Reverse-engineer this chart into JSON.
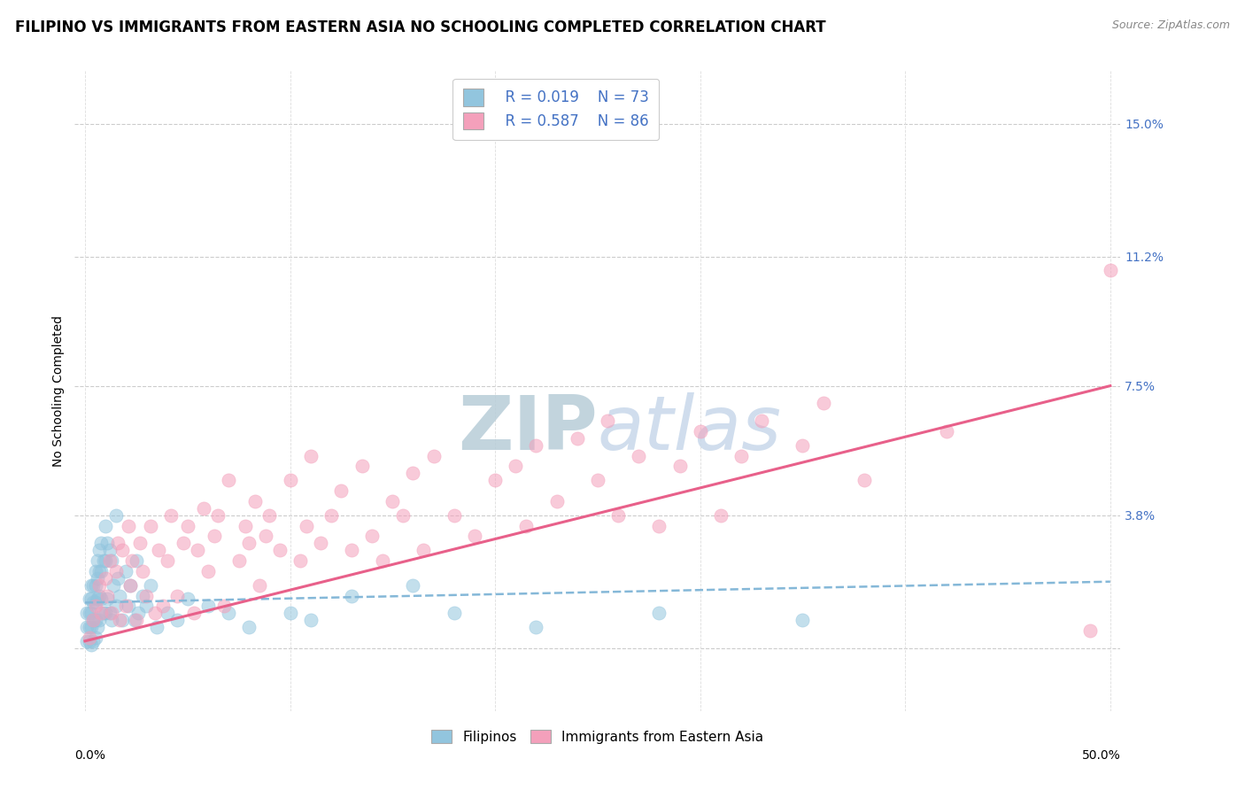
{
  "title": "FILIPINO VS IMMIGRANTS FROM EASTERN ASIA NO SCHOOLING COMPLETED CORRELATION CHART",
  "source": "Source: ZipAtlas.com",
  "ylabel": "No Schooling Completed",
  "ytick_labels": [
    "",
    "3.8%",
    "7.5%",
    "11.2%",
    "15.0%"
  ],
  "ytick_values": [
    0.0,
    0.038,
    0.075,
    0.112,
    0.15
  ],
  "xlim": [
    -0.005,
    0.505
  ],
  "ylim": [
    -0.018,
    0.165
  ],
  "legend_r1": "R = 0.019",
  "legend_n1": "N = 73",
  "legend_r2": "R = 0.587",
  "legend_n2": "N = 86",
  "blue_color": "#92C5DE",
  "pink_color": "#F4A0BB",
  "pink_line_color": "#E8608A",
  "blue_line_color": "#85B8D8",
  "title_fontsize": 12,
  "label_fontsize": 10,
  "tick_fontsize": 10,
  "watermark_color": "#C8D8EA",
  "background_color": "#ffffff",
  "blue_trend_x": [
    0.0,
    0.5
  ],
  "blue_trend_y": [
    0.013,
    0.019
  ],
  "pink_trend_x": [
    0.0,
    0.5
  ],
  "pink_trend_y": [
    0.002,
    0.075
  ],
  "blue_x": [
    0.001,
    0.001,
    0.001,
    0.002,
    0.002,
    0.002,
    0.002,
    0.003,
    0.003,
    0.003,
    0.003,
    0.003,
    0.004,
    0.004,
    0.004,
    0.004,
    0.005,
    0.005,
    0.005,
    0.005,
    0.005,
    0.006,
    0.006,
    0.006,
    0.006,
    0.007,
    0.007,
    0.007,
    0.007,
    0.008,
    0.008,
    0.008,
    0.009,
    0.009,
    0.01,
    0.01,
    0.01,
    0.011,
    0.011,
    0.012,
    0.012,
    0.013,
    0.013,
    0.014,
    0.015,
    0.015,
    0.016,
    0.017,
    0.018,
    0.02,
    0.021,
    0.022,
    0.024,
    0.025,
    0.026,
    0.028,
    0.03,
    0.032,
    0.035,
    0.04,
    0.045,
    0.05,
    0.06,
    0.07,
    0.08,
    0.1,
    0.11,
    0.13,
    0.16,
    0.18,
    0.22,
    0.28,
    0.35
  ],
  "blue_y": [
    0.01,
    0.006,
    0.002,
    0.014,
    0.01,
    0.006,
    0.002,
    0.018,
    0.014,
    0.01,
    0.006,
    0.001,
    0.018,
    0.013,
    0.008,
    0.002,
    0.022,
    0.018,
    0.013,
    0.008,
    0.003,
    0.025,
    0.02,
    0.014,
    0.006,
    0.028,
    0.022,
    0.015,
    0.008,
    0.03,
    0.022,
    0.014,
    0.025,
    0.01,
    0.035,
    0.025,
    0.01,
    0.03,
    0.014,
    0.028,
    0.01,
    0.025,
    0.008,
    0.018,
    0.038,
    0.012,
    0.02,
    0.015,
    0.008,
    0.022,
    0.012,
    0.018,
    0.008,
    0.025,
    0.01,
    0.015,
    0.012,
    0.018,
    0.006,
    0.01,
    0.008,
    0.014,
    0.012,
    0.01,
    0.006,
    0.01,
    0.008,
    0.015,
    0.018,
    0.01,
    0.006,
    0.01,
    0.008
  ],
  "pink_x": [
    0.002,
    0.004,
    0.005,
    0.007,
    0.008,
    0.01,
    0.011,
    0.012,
    0.013,
    0.015,
    0.016,
    0.017,
    0.018,
    0.02,
    0.021,
    0.022,
    0.023,
    0.025,
    0.027,
    0.028,
    0.03,
    0.032,
    0.034,
    0.036,
    0.038,
    0.04,
    0.042,
    0.045,
    0.048,
    0.05,
    0.053,
    0.055,
    0.058,
    0.06,
    0.063,
    0.065,
    0.068,
    0.07,
    0.075,
    0.078,
    0.08,
    0.083,
    0.085,
    0.088,
    0.09,
    0.095,
    0.1,
    0.105,
    0.108,
    0.11,
    0.115,
    0.12,
    0.125,
    0.13,
    0.135,
    0.14,
    0.145,
    0.15,
    0.155,
    0.16,
    0.165,
    0.17,
    0.18,
    0.19,
    0.2,
    0.21,
    0.215,
    0.22,
    0.23,
    0.24,
    0.25,
    0.255,
    0.26,
    0.27,
    0.28,
    0.29,
    0.3,
    0.31,
    0.32,
    0.33,
    0.35,
    0.36,
    0.38,
    0.42,
    0.49,
    0.5
  ],
  "pink_y": [
    0.003,
    0.008,
    0.012,
    0.018,
    0.01,
    0.02,
    0.015,
    0.025,
    0.01,
    0.022,
    0.03,
    0.008,
    0.028,
    0.012,
    0.035,
    0.018,
    0.025,
    0.008,
    0.03,
    0.022,
    0.015,
    0.035,
    0.01,
    0.028,
    0.012,
    0.025,
    0.038,
    0.015,
    0.03,
    0.035,
    0.01,
    0.028,
    0.04,
    0.022,
    0.032,
    0.038,
    0.012,
    0.048,
    0.025,
    0.035,
    0.03,
    0.042,
    0.018,
    0.032,
    0.038,
    0.028,
    0.048,
    0.025,
    0.035,
    0.055,
    0.03,
    0.038,
    0.045,
    0.028,
    0.052,
    0.032,
    0.025,
    0.042,
    0.038,
    0.05,
    0.028,
    0.055,
    0.038,
    0.032,
    0.048,
    0.052,
    0.035,
    0.058,
    0.042,
    0.06,
    0.048,
    0.065,
    0.038,
    0.055,
    0.035,
    0.052,
    0.062,
    0.038,
    0.055,
    0.065,
    0.058,
    0.07,
    0.048,
    0.062,
    0.005,
    0.108
  ]
}
